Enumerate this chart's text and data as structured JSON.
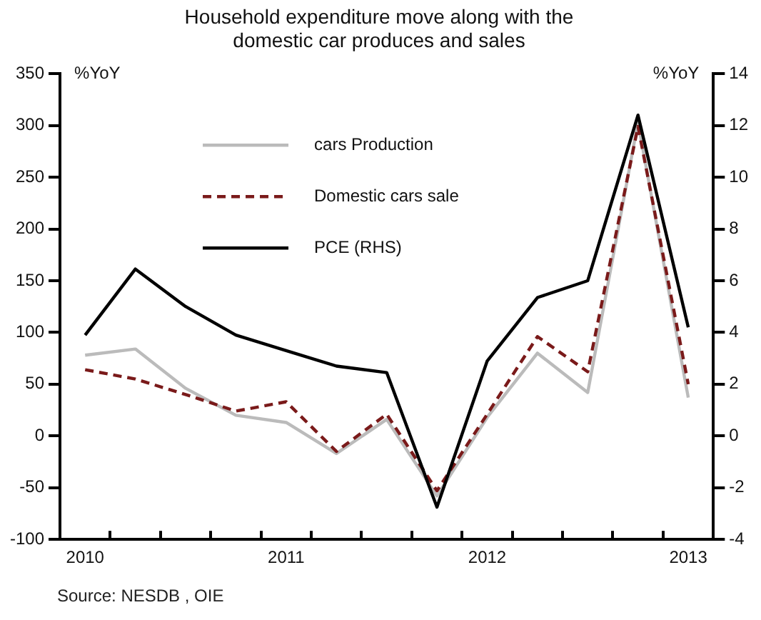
{
  "chart_data": {
    "type": "line",
    "title": "Household expenditure move along with the domestic car produces and sales",
    "ylabel": "%YoY",
    "y2label": "%YoY",
    "categories": [
      "2010",
      null,
      null,
      null,
      "2011",
      null,
      null,
      null,
      "2012",
      null,
      null,
      null,
      "2013"
    ],
    "series": [
      {
        "name": "cars Production",
        "color": "#bbbbbb",
        "line_style": "solid",
        "values": [
          78,
          84,
          46,
          20,
          13,
          -17,
          16,
          -58,
          18,
          80,
          42,
          303,
          37
        ]
      },
      {
        "name": "Domestic cars sale",
        "color": "#7a1a1a",
        "line_style": "dashed",
        "values": [
          64,
          55,
          40,
          24,
          33,
          -15,
          21,
          -53,
          21,
          96,
          62,
          299,
          50
        ]
      },
      {
        "name": "PCE (RHS)",
        "color": "#000000",
        "line_style": "solid",
        "axis": "y2",
        "values": [
          3.9,
          6.45,
          5.0,
          3.9,
          3.3,
          2.7,
          2.45,
          -2.75,
          2.9,
          5.35,
          6.0,
          12.4,
          4.2
        ]
      }
    ],
    "ylim": [
      -100,
      350
    ],
    "yticks": [
      -100,
      -50,
      0,
      50,
      100,
      150,
      200,
      250,
      300,
      350
    ],
    "y2lim": [
      -4,
      14
    ],
    "y2ticks": [
      -4,
      -2,
      0,
      2,
      4,
      6,
      8,
      10,
      12,
      14
    ],
    "grid": false,
    "legend": "top left",
    "marker": "none",
    "annotations": [
      "Source: NESDB , OIE"
    ]
  }
}
